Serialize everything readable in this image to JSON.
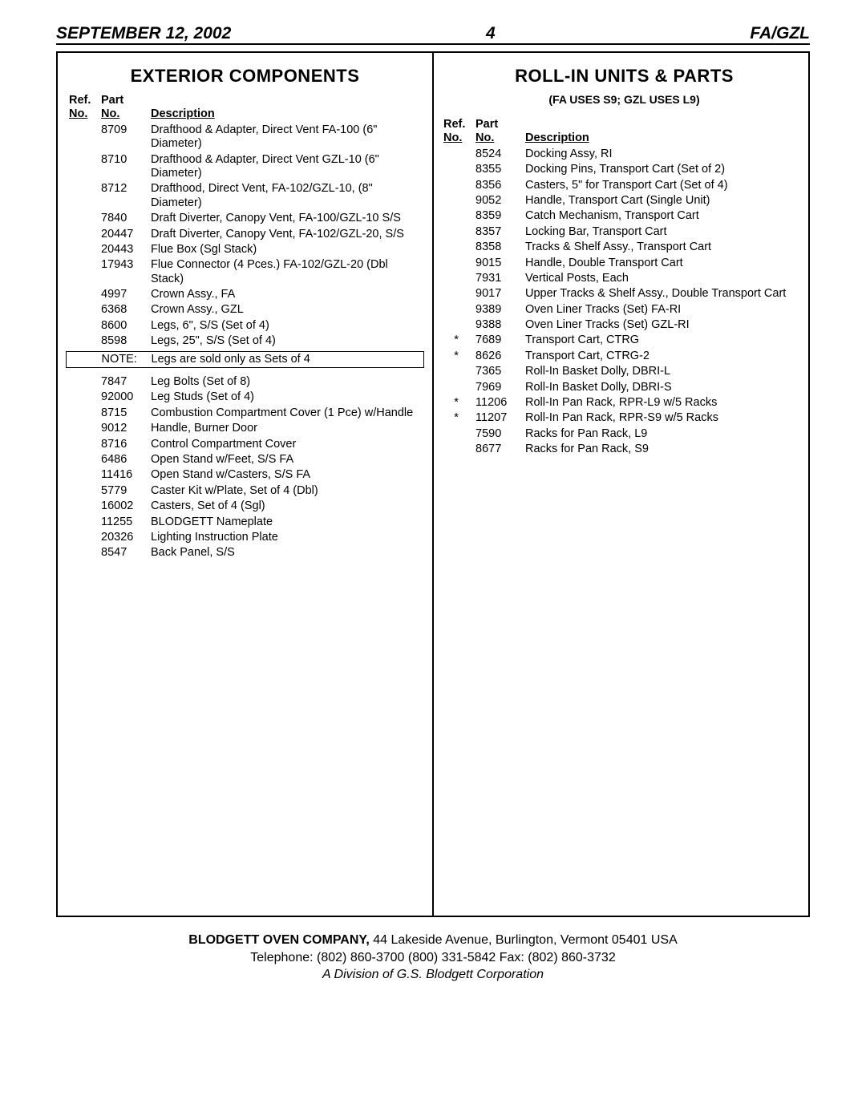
{
  "header": {
    "date": "SEPTEMBER 12, 2002",
    "page_no": "4",
    "model": "FA/GZL"
  },
  "left": {
    "title": "EXTERIOR COMPONENTS",
    "columns": {
      "ref": "Ref.",
      "ref2": "No.",
      "part": "Part",
      "part2": "No.",
      "desc": "Description"
    },
    "rows_a": [
      {
        "ref": "",
        "part": "8709",
        "desc": "Drafthood & Adapter, Direct Vent FA-100 (6\" Diameter)"
      },
      {
        "ref": "",
        "part": "8710",
        "desc": "Drafthood & Adapter, Direct Vent GZL-10 (6\" Diameter)"
      },
      {
        "ref": "",
        "part": "8712",
        "desc": "Drafthood, Direct Vent, FA-102/GZL-10, (8\" Diameter)"
      },
      {
        "ref": "",
        "part": "7840",
        "desc": "Draft Diverter, Canopy Vent, FA-100/GZL-10 S/S"
      },
      {
        "ref": "",
        "part": "20447",
        "desc": "Draft Diverter, Canopy Vent, FA-102/GZL-20, S/S"
      },
      {
        "ref": "",
        "part": "20443",
        "desc": "Flue Box (Sgl Stack)"
      },
      {
        "ref": "",
        "part": "17943",
        "desc": "Flue Connector (4 Pces.) FA-102/GZL-20 (Dbl Stack)"
      },
      {
        "ref": "",
        "part": "4997",
        "desc": "Crown Assy., FA"
      },
      {
        "ref": "",
        "part": "6368",
        "desc": "Crown Assy., GZL"
      },
      {
        "ref": "",
        "part": "8600",
        "desc": "Legs, 6\", S/S (Set of 4)"
      },
      {
        "ref": "",
        "part": "8598",
        "desc": "Legs, 25\", S/S (Set of 4)"
      }
    ],
    "note": {
      "label": "NOTE:",
      "text": "Legs are sold only as Sets of 4"
    },
    "rows_b": [
      {
        "ref": "",
        "part": "7847",
        "desc": "Leg Bolts (Set of 8)"
      },
      {
        "ref": "",
        "part": "92000",
        "desc": "Leg Studs (Set of 4)"
      },
      {
        "ref": "",
        "part": "8715",
        "desc": "Combustion Compartment Cover (1 Pce) w/Handle"
      },
      {
        "ref": "",
        "part": "9012",
        "desc": "Handle, Burner Door"
      },
      {
        "ref": "",
        "part": "8716",
        "desc": "Control Compartment Cover"
      },
      {
        "ref": "",
        "part": "6486",
        "desc": "Open Stand w/Feet, S/S FA"
      },
      {
        "ref": "",
        "part": "11416",
        "desc": "Open Stand w/Casters, S/S FA"
      },
      {
        "ref": "",
        "part": "5779",
        "desc": "Caster Kit w/Plate, Set of 4 (Dbl)"
      },
      {
        "ref": "",
        "part": "16002",
        "desc": "Casters, Set of 4 (Sgl)"
      },
      {
        "ref": "",
        "part": "11255",
        "desc": "BLODGETT Nameplate"
      },
      {
        "ref": "",
        "part": "20326",
        "desc": "Lighting Instruction Plate"
      },
      {
        "ref": "",
        "part": "8547",
        "desc": "Back Panel, S/S"
      }
    ]
  },
  "right": {
    "title": "ROLL-IN UNITS & PARTS",
    "subtitle": "(FA USES S9; GZL USES L9)",
    "columns": {
      "ref": "Ref.",
      "ref2": "No.",
      "part": "Part",
      "part2": "No.",
      "desc": "Description"
    },
    "rows": [
      {
        "ref": "",
        "part": "8524",
        "desc": "Docking Assy, RI"
      },
      {
        "ref": "",
        "part": "8355",
        "desc": "Docking Pins, Transport Cart (Set of 2)"
      },
      {
        "ref": "",
        "part": "8356",
        "desc": "Casters, 5\" for Transport Cart (Set of 4)"
      },
      {
        "ref": "",
        "part": "9052",
        "desc": "Handle, Transport Cart (Single Unit)"
      },
      {
        "ref": "",
        "part": "8359",
        "desc": "Catch Mechanism, Transport Cart"
      },
      {
        "ref": "",
        "part": "8357",
        "desc": "Locking Bar, Transport Cart"
      },
      {
        "ref": "",
        "part": "8358",
        "desc": "Tracks & Shelf Assy., Transport Cart"
      },
      {
        "ref": "",
        "part": "9015",
        "desc": "Handle, Double Transport Cart"
      },
      {
        "ref": "",
        "part": "7931",
        "desc": "Vertical Posts, Each"
      },
      {
        "ref": "",
        "part": "9017",
        "desc": "Upper Tracks & Shelf Assy., Double Transport Cart"
      },
      {
        "ref": "",
        "part": "9389",
        "desc": "Oven Liner Tracks (Set) FA-RI"
      },
      {
        "ref": "",
        "part": "9388",
        "desc": "Oven Liner Tracks (Set) GZL-RI"
      },
      {
        "ref": "*",
        "part": "7689",
        "desc": "Transport Cart, CTRG"
      },
      {
        "ref": "*",
        "part": "8626",
        "desc": "Transport Cart, CTRG-2"
      },
      {
        "ref": "",
        "part": "7365",
        "desc": "Roll-In Basket Dolly, DBRI-L"
      },
      {
        "ref": "",
        "part": "7969",
        "desc": "Roll-In Basket Dolly, DBRI-S"
      },
      {
        "ref": "*",
        "part": "11206",
        "desc": "Roll-In Pan Rack, RPR-L9 w/5 Racks"
      },
      {
        "ref": "*",
        "part": "11207",
        "desc": "Roll-In Pan Rack, RPR-S9 w/5 Racks"
      },
      {
        "ref": "",
        "part": "7590",
        "desc": "Racks for Pan Rack, L9"
      },
      {
        "ref": "",
        "part": "8677",
        "desc": "Racks for Pan Rack, S9"
      }
    ]
  },
  "footer": {
    "company": "BLODGETT OVEN COMPANY,",
    "address": " 44 Lakeside Avenue, Burlington, Vermont 05401 USA",
    "phone": "Telephone: (802) 860-3700  (800) 331-5842  Fax: (802) 860-3732",
    "division": "A Division of G.S. Blodgett Corporation"
  }
}
